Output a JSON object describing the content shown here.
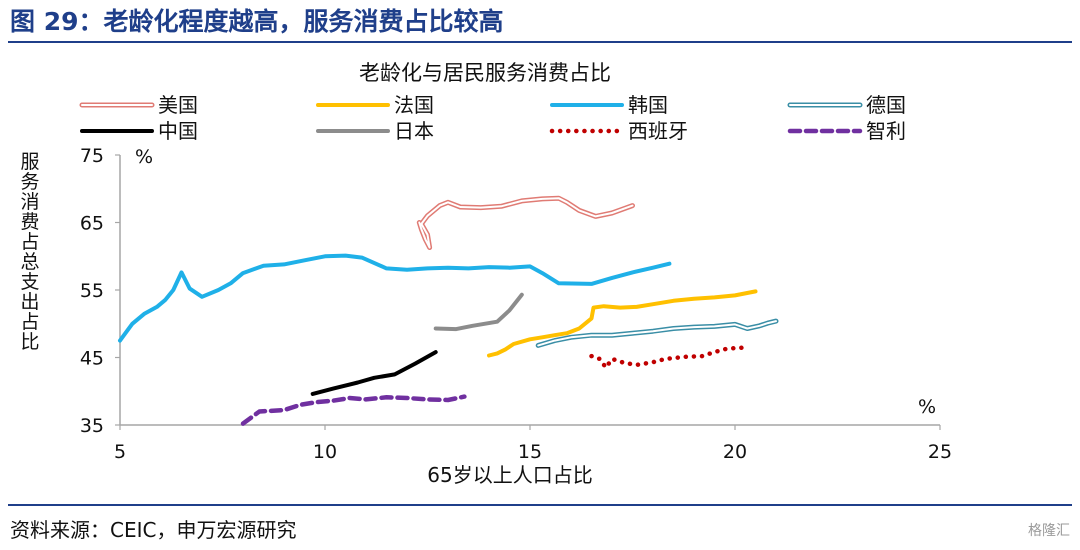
{
  "figure_title": "图 29：老龄化程度越高，服务消费占比较高",
  "source_note": "资料来源：CEIC，申万宏源研究",
  "watermark": "格隆汇",
  "chart_data": {
    "type": "line",
    "title": "老龄化与居民服务消费占比",
    "xlabel": "65岁以上人口占比",
    "ylabel": "服务消费占总支出占比",
    "x_unit": "%",
    "y_unit": "%",
    "xlim": [
      5,
      25
    ],
    "ylim": [
      35,
      75
    ],
    "x_ticks": [
      5,
      10,
      15,
      20,
      25
    ],
    "y_ticks": [
      35,
      45,
      55,
      65,
      75
    ],
    "grid": false,
    "legend_position": "top",
    "series": [
      {
        "name": "美国",
        "color": "#e07b74",
        "style": "double",
        "points": [
          [
            12.3,
            65
          ],
          [
            12.35,
            64
          ],
          [
            12.45,
            62.5
          ],
          [
            12.55,
            61.3
          ],
          [
            12.5,
            63.2
          ],
          [
            12.35,
            64.8
          ],
          [
            12.5,
            66
          ],
          [
            12.8,
            67.5
          ],
          [
            13.0,
            68.0
          ],
          [
            13.3,
            67.3
          ],
          [
            13.8,
            67.2
          ],
          [
            14.3,
            67.4
          ],
          [
            14.8,
            68.2
          ],
          [
            15.3,
            68.5
          ],
          [
            15.7,
            68.6
          ],
          [
            15.9,
            68.0
          ],
          [
            16.2,
            66.8
          ],
          [
            16.6,
            65.9
          ],
          [
            17.0,
            66.4
          ],
          [
            17.5,
            67.5
          ]
        ]
      },
      {
        "name": "法国",
        "color": "#ffc000",
        "style": "solid",
        "points": [
          [
            14.0,
            45.3
          ],
          [
            14.2,
            45.6
          ],
          [
            14.4,
            46.2
          ],
          [
            14.6,
            47.0
          ],
          [
            15.0,
            47.7
          ],
          [
            15.3,
            48.0
          ],
          [
            15.6,
            48.3
          ],
          [
            15.9,
            48.6
          ],
          [
            16.2,
            49.3
          ],
          [
            16.5,
            50.8
          ],
          [
            16.55,
            52.4
          ],
          [
            16.8,
            52.6
          ],
          [
            17.2,
            52.4
          ],
          [
            17.6,
            52.5
          ],
          [
            18.0,
            52.9
          ],
          [
            18.5,
            53.4
          ],
          [
            19.0,
            53.7
          ],
          [
            19.5,
            53.9
          ],
          [
            20.0,
            54.2
          ],
          [
            20.5,
            54.8
          ]
        ]
      },
      {
        "name": "韩国",
        "color": "#1fb0e8",
        "style": "solid",
        "points": [
          [
            5.0,
            47.5
          ],
          [
            5.3,
            50.0
          ],
          [
            5.6,
            51.5
          ],
          [
            5.9,
            52.5
          ],
          [
            6.1,
            53.5
          ],
          [
            6.3,
            55.0
          ],
          [
            6.5,
            57.6
          ],
          [
            6.7,
            55.2
          ],
          [
            7.0,
            54.0
          ],
          [
            7.4,
            55.0
          ],
          [
            7.7,
            56.0
          ],
          [
            8.0,
            57.5
          ],
          [
            8.5,
            58.6
          ],
          [
            9.0,
            58.8
          ],
          [
            9.5,
            59.4
          ],
          [
            10.0,
            60.0
          ],
          [
            10.5,
            60.1
          ],
          [
            10.9,
            59.8
          ],
          [
            11.5,
            58.2
          ],
          [
            12.0,
            58.0
          ],
          [
            12.5,
            58.2
          ],
          [
            13.0,
            58.3
          ],
          [
            13.5,
            58.2
          ],
          [
            14.0,
            58.4
          ],
          [
            14.5,
            58.3
          ],
          [
            15.0,
            58.5
          ],
          [
            15.3,
            57.5
          ],
          [
            15.7,
            56.0
          ],
          [
            16.5,
            55.9
          ],
          [
            17.0,
            56.8
          ],
          [
            17.5,
            57.6
          ],
          [
            18.0,
            58.3
          ],
          [
            18.4,
            58.9
          ]
        ]
      },
      {
        "name": "德国",
        "color": "#3a8ea6",
        "style": "double",
        "points": [
          [
            15.2,
            46.8
          ],
          [
            15.6,
            47.5
          ],
          [
            16.0,
            48.0
          ],
          [
            16.5,
            48.3
          ],
          [
            17.0,
            48.3
          ],
          [
            17.5,
            48.6
          ],
          [
            18.0,
            48.9
          ],
          [
            18.5,
            49.3
          ],
          [
            19.0,
            49.5
          ],
          [
            19.5,
            49.6
          ],
          [
            20.0,
            49.9
          ],
          [
            20.3,
            49.3
          ],
          [
            20.6,
            49.7
          ],
          [
            20.8,
            50.1
          ],
          [
            21.0,
            50.4
          ]
        ]
      },
      {
        "name": "中国",
        "color": "#000000",
        "style": "solid",
        "points": [
          [
            9.7,
            39.6
          ],
          [
            10.2,
            40.4
          ],
          [
            10.8,
            41.3
          ],
          [
            11.2,
            42.0
          ],
          [
            11.7,
            42.5
          ],
          [
            12.2,
            44.1
          ],
          [
            12.7,
            45.8
          ]
        ]
      },
      {
        "name": "日本",
        "color": "#8c8c8c",
        "style": "solid",
        "points": [
          [
            12.7,
            49.3
          ],
          [
            13.2,
            49.2
          ],
          [
            13.6,
            49.7
          ],
          [
            14.2,
            50.3
          ],
          [
            14.5,
            52.0
          ],
          [
            14.8,
            54.3
          ]
        ]
      },
      {
        "name": "西班牙",
        "color": "#c00000",
        "style": "dotted",
        "points": [
          [
            16.5,
            45.2
          ],
          [
            16.7,
            44.8
          ],
          [
            16.85,
            43.5
          ],
          [
            17.0,
            44.8
          ],
          [
            17.3,
            44.2
          ],
          [
            17.6,
            43.9
          ],
          [
            18.0,
            44.3
          ],
          [
            18.3,
            44.8
          ],
          [
            18.8,
            45.1
          ],
          [
            19.2,
            45.2
          ],
          [
            19.5,
            45.8
          ],
          [
            19.8,
            46.3
          ],
          [
            20.3,
            46.5
          ]
        ]
      },
      {
        "name": "智利",
        "color": "#7030a0",
        "style": "dashed",
        "points": [
          [
            8.0,
            35.2
          ],
          [
            8.4,
            37.0
          ],
          [
            9.0,
            37.2
          ],
          [
            9.4,
            38.0
          ],
          [
            9.8,
            38.4
          ],
          [
            10.2,
            38.6
          ],
          [
            10.6,
            39.0
          ],
          [
            11.0,
            38.8
          ],
          [
            11.5,
            39.1
          ],
          [
            12.0,
            39.0
          ],
          [
            12.5,
            38.8
          ],
          [
            13.0,
            38.7
          ],
          [
            13.4,
            39.2
          ]
        ]
      }
    ]
  }
}
